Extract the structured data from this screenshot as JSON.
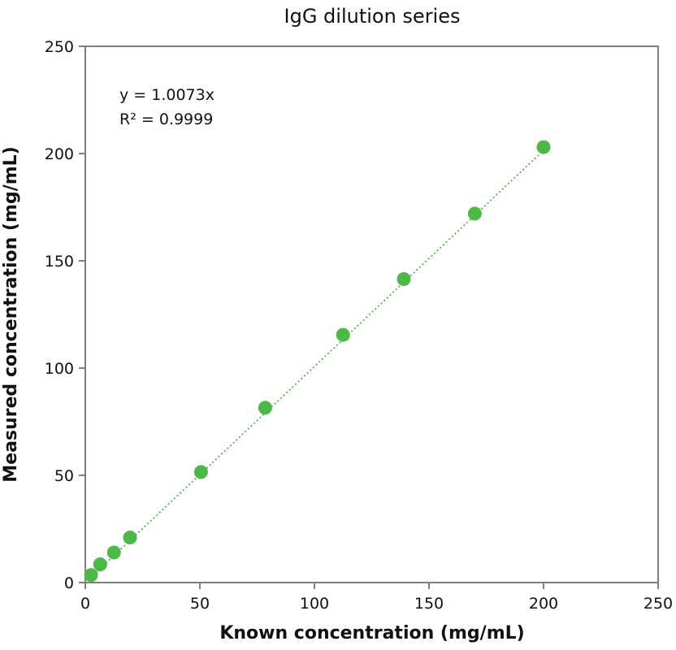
{
  "chart_data": {
    "type": "scatter",
    "title": "IgG dilution series",
    "xlabel": "Known concentration (mg/mL)",
    "ylabel": "Measured concentration (mg/mL)",
    "xlim": [
      0,
      250
    ],
    "ylim": [
      0,
      250
    ],
    "xticks": [
      0,
      50,
      100,
      150,
      200,
      250
    ],
    "yticks": [
      0,
      50,
      100,
      150,
      200,
      250
    ],
    "grid": false,
    "legend": "none",
    "series": [
      {
        "color": "#4cb848",
        "x": [
          2.5,
          6.5,
          12.5,
          19.5,
          50.5,
          78.5,
          112.5,
          139,
          170,
          200
        ],
        "y": [
          3.5,
          8.5,
          14,
          21,
          51.5,
          81.5,
          115.5,
          141.5,
          172,
          203
        ]
      }
    ],
    "trendline": {
      "style": "dotted",
      "color": "#4cb848",
      "slope": 1.0073,
      "x_range": [
        0,
        201
      ]
    },
    "annotations": [
      "y = 1.0073x",
      "R² = 0.9999"
    ],
    "frame_color": "#7f7f7f"
  }
}
